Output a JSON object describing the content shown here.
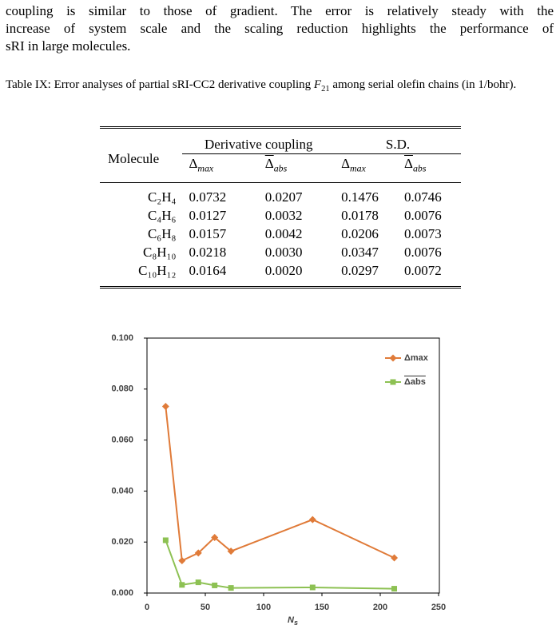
{
  "paragraph": {
    "lines": [
      "coupling is similar to those of gradient. The error is relatively steady with the",
      "increase of system scale and the scaling reduction highlights the performance of",
      "sRI in large molecules."
    ]
  },
  "caption": {
    "prefix": "Table IX: Error analyses of partial sRI-CC2 derivative coupling ",
    "symbol": "F",
    "symbol_sub": "21",
    "suffix": " among serial olefin chains (in 1/bohr)."
  },
  "table": {
    "row_header": "Molecule",
    "groups": [
      "Derivative coupling",
      "S.D."
    ],
    "subheaders": [
      {
        "sym": "Δ",
        "sub": "max",
        "bar": false
      },
      {
        "sym": "Δ",
        "sub": "abs",
        "bar": true
      },
      {
        "sym": "Δ",
        "sub": "max",
        "bar": false
      },
      {
        "sym": "Δ",
        "sub": "abs",
        "bar": true
      }
    ],
    "rows": [
      [
        "C₂H₄",
        "0.0732",
        "0.0207",
        "0.1476",
        "0.0746"
      ],
      [
        "C₄H₆",
        "0.0127",
        "0.0032",
        "0.0178",
        "0.0076"
      ],
      [
        "C₆H₈",
        "0.0157",
        "0.0042",
        "0.0206",
        "0.0073"
      ],
      [
        "C₈H₁₀",
        "0.0218",
        "0.0030",
        "0.0347",
        "0.0076"
      ],
      [
        "C₁₀H₁₂",
        "0.0164",
        "0.0020",
        "0.0297",
        "0.0072"
      ]
    ]
  },
  "chart_data": {
    "type": "line",
    "x_label": "N",
    "x_label_sub": "s",
    "x": [
      16,
      30,
      44,
      58,
      72,
      142,
      212
    ],
    "series": [
      {
        "name": "Δmax",
        "color": "#e07b39",
        "marker": "diamond",
        "values": [
          0.0732,
          0.0127,
          0.0157,
          0.0218,
          0.0164,
          0.0288,
          0.0138
        ]
      },
      {
        "name": "Δabs",
        "color": "#8dc153",
        "marker": "square",
        "values": [
          0.0207,
          0.0032,
          0.0042,
          0.003,
          0.002,
          0.0022,
          0.0017
        ]
      }
    ],
    "xlim": [
      0,
      250
    ],
    "xticks": [
      0,
      50,
      100,
      150,
      200,
      250
    ],
    "ylim": [
      0,
      0.1
    ],
    "yticks": [
      {
        "value": 0,
        "label": "0.000"
      },
      {
        "value": 0.02,
        "label": "0.020"
      },
      {
        "value": 0.04,
        "label": "0.040"
      },
      {
        "value": 0.06,
        "label": "0.060"
      },
      {
        "value": 0.08,
        "label": "0.080"
      },
      {
        "value": 0.1,
        "label": "0.100"
      }
    ],
    "legend": "upper right"
  }
}
